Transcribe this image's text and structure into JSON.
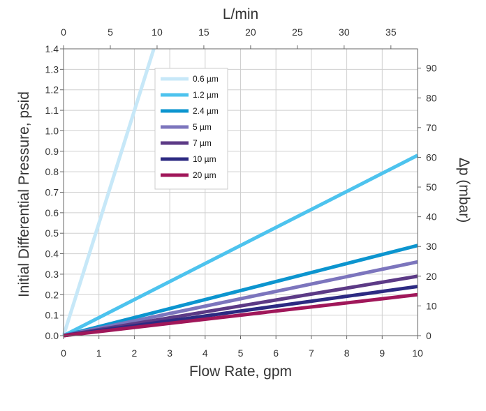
{
  "chart_data": {
    "type": "line",
    "xlabel": "Flow Rate, gpm",
    "ylabel": "Initial Differential Pressure, psid",
    "x2label": "L/min",
    "y2label": "Δp (mbar)",
    "xlim": [
      0,
      10
    ],
    "ylim": [
      0,
      1.4
    ],
    "x2lim": [
      0,
      37.85
    ],
    "y2lim": [
      0,
      96.5
    ],
    "x_ticks": [
      "0",
      "1",
      "2",
      "3",
      "4",
      "5",
      "6",
      "7",
      "8",
      "9",
      "10"
    ],
    "y_ticks": [
      "0.0",
      "0.1",
      "0.2",
      "0.3",
      "0.4",
      "0.5",
      "0.6",
      "0.7",
      "0.8",
      "0.9",
      "1.0",
      "1.1",
      "1.2",
      "1.3",
      "1.4"
    ],
    "x2_ticks": [
      "0",
      "5",
      "10",
      "15",
      "20",
      "25",
      "30",
      "35"
    ],
    "y2_ticks": [
      "0",
      "10",
      "20",
      "30",
      "40",
      "50",
      "60",
      "70",
      "80",
      "90"
    ],
    "grid": true,
    "legend_position": "top-left",
    "series": [
      {
        "name": "0.6 µm",
        "color": "#c7e8f8",
        "x": [
          0,
          2.55
        ],
        "y": [
          0.0,
          1.4
        ]
      },
      {
        "name": "1.2 µm",
        "color": "#4dc3ee",
        "x": [
          0,
          10
        ],
        "y": [
          0.0,
          0.88
        ]
      },
      {
        "name": "2.4 µm",
        "color": "#0c95cf",
        "x": [
          0,
          10
        ],
        "y": [
          0.0,
          0.44
        ]
      },
      {
        "name": "5 µm",
        "color": "#7c75bd",
        "x": [
          0,
          10
        ],
        "y": [
          0.0,
          0.36
        ]
      },
      {
        "name": "7 µm",
        "color": "#5c3a86",
        "x": [
          0,
          10
        ],
        "y": [
          0.0,
          0.29
        ]
      },
      {
        "name": "10 µm",
        "color": "#2c2a82",
        "x": [
          0,
          10
        ],
        "y": [
          0.0,
          0.24
        ]
      },
      {
        "name": "20 µm",
        "color": "#a0175a",
        "x": [
          0,
          10
        ],
        "y": [
          0.0,
          0.2
        ]
      }
    ]
  }
}
